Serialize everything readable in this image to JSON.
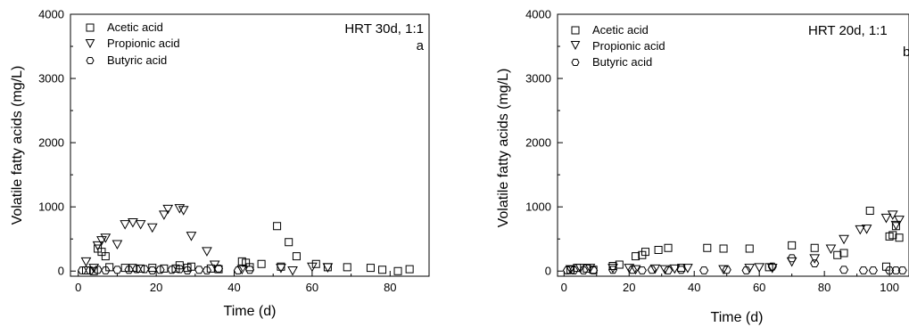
{
  "chart_data": [
    {
      "type": "scatter",
      "title": "HRT 30d, 1:1",
      "panel_label": "a",
      "xlabel": "Time (d)",
      "ylabel": "Volatile fatty acids (mg/L)",
      "xlim": [
        -2,
        90
      ],
      "ylim": [
        -80,
        4000
      ],
      "xticks": [
        0,
        20,
        40,
        60,
        80
      ],
      "yticks": [
        0,
        1000,
        2000,
        3000,
        4000
      ],
      "legend_position": "top-left",
      "series": [
        {
          "name": "Acetic acid",
          "marker": "square",
          "points": [
            [
              2,
              10
            ],
            [
              4,
              0
            ],
            [
              5,
              350
            ],
            [
              6,
              300
            ],
            [
              7,
              230
            ],
            [
              8,
              60
            ],
            [
              12,
              50
            ],
            [
              14,
              50
            ],
            [
              16,
              40
            ],
            [
              19,
              50
            ],
            [
              22,
              40
            ],
            [
              25,
              40
            ],
            [
              26,
              90
            ],
            [
              28,
              50
            ],
            [
              29,
              70
            ],
            [
              34,
              40
            ],
            [
              36,
              30
            ],
            [
              42,
              150
            ],
            [
              43,
              130
            ],
            [
              44,
              60
            ],
            [
              47,
              110
            ],
            [
              51,
              700
            ],
            [
              52,
              70
            ],
            [
              54,
              450
            ],
            [
              56,
              230
            ],
            [
              61,
              110
            ],
            [
              64,
              60
            ],
            [
              69,
              60
            ],
            [
              75,
              50
            ],
            [
              78,
              20
            ],
            [
              82,
              0
            ],
            [
              85,
              30
            ]
          ]
        },
        {
          "name": "Propionic acid",
          "marker": "triangle-down",
          "points": [
            [
              2,
              150
            ],
            [
              4,
              50
            ],
            [
              5,
              400
            ],
            [
              6,
              480
            ],
            [
              7,
              520
            ],
            [
              10,
              420
            ],
            [
              12,
              730
            ],
            [
              14,
              760
            ],
            [
              16,
              730
            ],
            [
              19,
              680
            ],
            [
              22,
              880
            ],
            [
              23,
              970
            ],
            [
              26,
              980
            ],
            [
              27,
              950
            ],
            [
              29,
              550
            ],
            [
              33,
              310
            ],
            [
              35,
              100
            ],
            [
              42,
              30
            ],
            [
              52,
              50
            ],
            [
              55,
              10
            ],
            [
              60,
              70
            ],
            [
              64,
              60
            ]
          ]
        },
        {
          "name": "Butyric acid",
          "marker": "hexagon",
          "points": [
            [
              1,
              10
            ],
            [
              3,
              10
            ],
            [
              5,
              20
            ],
            [
              7,
              10
            ],
            [
              10,
              20
            ],
            [
              13,
              20
            ],
            [
              15,
              30
            ],
            [
              17,
              30
            ],
            [
              19,
              10
            ],
            [
              21,
              20
            ],
            [
              24,
              20
            ],
            [
              26,
              30
            ],
            [
              28,
              10
            ],
            [
              31,
              20
            ],
            [
              33,
              10
            ],
            [
              36,
              40
            ],
            [
              41,
              10
            ],
            [
              44,
              20
            ]
          ]
        }
      ]
    },
    {
      "type": "scatter",
      "title": "HRT 20d, 1:1",
      "panel_label": "b",
      "xlabel": "Time (d)",
      "ylabel": "Volatile fatty acids (mg/L)",
      "xlim": [
        -2,
        106
      ],
      "ylim": [
        -80,
        4000
      ],
      "xticks": [
        0,
        20,
        40,
        60,
        80,
        100
      ],
      "yticks": [
        0,
        1000,
        2000,
        3000,
        4000
      ],
      "legend_position": "top-left",
      "series": [
        {
          "name": "Acetic acid",
          "marker": "square",
          "points": [
            [
              2,
              20
            ],
            [
              4,
              50
            ],
            [
              7,
              40
            ],
            [
              9,
              20
            ],
            [
              15,
              80
            ],
            [
              17,
              100
            ],
            [
              22,
              230
            ],
            [
              24,
              250
            ],
            [
              25,
              300
            ],
            [
              29,
              330
            ],
            [
              32,
              360
            ],
            [
              36,
              50
            ],
            [
              44,
              360
            ],
            [
              49,
              350
            ],
            [
              57,
              350
            ],
            [
              63,
              60
            ],
            [
              70,
              400
            ],
            [
              77,
              360
            ],
            [
              84,
              250
            ],
            [
              86,
              280
            ],
            [
              94,
              940
            ],
            [
              99,
              70
            ],
            [
              100,
              540
            ],
            [
              101,
              560
            ],
            [
              102,
              700
            ],
            [
              103,
              520
            ]
          ]
        },
        {
          "name": "Propionic acid",
          "marker": "triangle-down",
          "points": [
            [
              2,
              30
            ],
            [
              5,
              50
            ],
            [
              8,
              50
            ],
            [
              15,
              50
            ],
            [
              20,
              50
            ],
            [
              22,
              30
            ],
            [
              28,
              40
            ],
            [
              31,
              30
            ],
            [
              34,
              40
            ],
            [
              38,
              50
            ],
            [
              49,
              30
            ],
            [
              57,
              50
            ],
            [
              60,
              60
            ],
            [
              64,
              50
            ],
            [
              70,
              150
            ],
            [
              77,
              200
            ],
            [
              82,
              350
            ],
            [
              86,
              500
            ],
            [
              91,
              650
            ],
            [
              93,
              660
            ],
            [
              99,
              830
            ],
            [
              101,
              880
            ],
            [
              102,
              720
            ],
            [
              103,
              800
            ]
          ]
        },
        {
          "name": "Butyric acid",
          "marker": "hexagon",
          "points": [
            [
              1,
              10
            ],
            [
              3,
              10
            ],
            [
              6,
              10
            ],
            [
              9,
              10
            ],
            [
              15,
              20
            ],
            [
              21,
              20
            ],
            [
              24,
              10
            ],
            [
              27,
              20
            ],
            [
              32,
              10
            ],
            [
              36,
              20
            ],
            [
              43,
              10
            ],
            [
              50,
              20
            ],
            [
              56,
              10
            ],
            [
              64,
              70
            ],
            [
              70,
              200
            ],
            [
              77,
              120
            ],
            [
              86,
              20
            ],
            [
              92,
              10
            ],
            [
              95,
              10
            ],
            [
              100,
              10
            ],
            [
              102,
              10
            ],
            [
              104,
              10
            ]
          ]
        }
      ]
    }
  ]
}
